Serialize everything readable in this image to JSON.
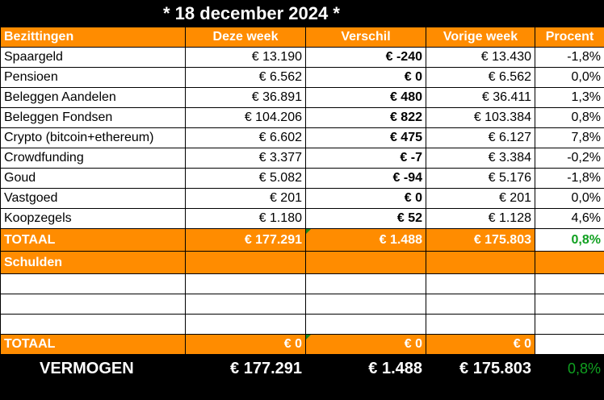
{
  "title": "* 18 december 2024 *",
  "headers": [
    "Bezittingen",
    "Deze week",
    "Verschil",
    "Vorige week",
    "Procent"
  ],
  "rows": [
    {
      "name": "Spaargeld",
      "current": "€ 13.190",
      "diff": "€ -240",
      "previous": "€ 13.430",
      "pct": "-1,8%",
      "sign": "neg"
    },
    {
      "name": "Pensioen",
      "current": "€ 6.562",
      "diff": "€ 0",
      "previous": "€ 6.562",
      "pct": "0,0%",
      "sign": "pos"
    },
    {
      "name": "Beleggen Aandelen",
      "current": "€ 36.891",
      "diff": "€ 480",
      "previous": "€ 36.411",
      "pct": "1,3%",
      "sign": "pos"
    },
    {
      "name": "Beleggen Fondsen",
      "current": "€ 104.206",
      "diff": "€ 822",
      "previous": "€ 103.384",
      "pct": "0,8%",
      "sign": "pos"
    },
    {
      "name": "Crypto (bitcoin+ethereum)",
      "current": "€ 6.602",
      "diff": "€ 475",
      "previous": "€ 6.127",
      "pct": "7,8%",
      "sign": "pos"
    },
    {
      "name": "Crowdfunding",
      "current": "€ 3.377",
      "diff": "€ -7",
      "previous": "€ 3.384",
      "pct": "-0,2%",
      "sign": "neg"
    },
    {
      "name": "Goud",
      "current": "€ 5.082",
      "diff": "€ -94",
      "previous": "€ 5.176",
      "pct": "-1,8%",
      "sign": "neg"
    },
    {
      "name": "Vastgoed",
      "current": "€ 201",
      "diff": "€ 0",
      "previous": "€ 201",
      "pct": "0,0%",
      "sign": "pos"
    },
    {
      "name": "Koopzegels",
      "current": "€ 1.180",
      "diff": "€ 52",
      "previous": "€ 1.128",
      "pct": "4,6%",
      "sign": "pos"
    }
  ],
  "total_assets": {
    "label": "TOTAAL",
    "current": "€ 177.291",
    "diff": "€ 1.488",
    "previous": "€ 175.803",
    "pct": "0,8%"
  },
  "debts_label": "Schulden",
  "total_debts": {
    "label": "TOTAAL",
    "current": "€ 0",
    "diff": "€ 0",
    "previous": "€ 0"
  },
  "net_worth": {
    "label": "VERMOGEN",
    "current": "€ 177.291",
    "diff": "€ 1.488",
    "previous": "€ 175.803",
    "pct": "0,8%"
  },
  "colors": {
    "header": "#ff8c00",
    "negative": "#e00000",
    "positive": "#10a020"
  }
}
